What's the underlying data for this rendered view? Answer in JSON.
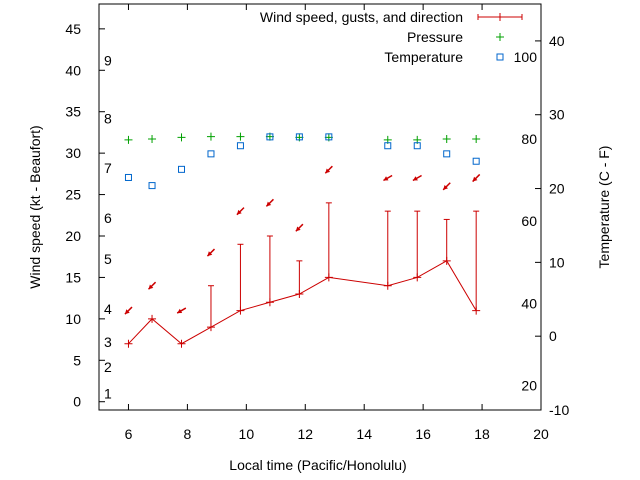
{
  "chart_data": {
    "type": "line",
    "xlabel": "Local time (Pacific/Honolulu)",
    "ylabel": "Wind speed (kt - Beaufort)",
    "y2label": "Temperature (C - F)",
    "xlim": [
      5,
      20
    ],
    "ylim": [
      -1,
      48
    ],
    "y2lim": [
      -10,
      45
    ],
    "x_ticks": [
      "6",
      "8",
      "10",
      "12",
      "14",
      "16",
      "18",
      "20"
    ],
    "y_ticks": [
      "0",
      "5",
      "10",
      "15",
      "20",
      "25",
      "30",
      "35",
      "40",
      "45"
    ],
    "y2_ticks": [
      "-10",
      "0",
      "10",
      "20",
      "30",
      "40"
    ],
    "beaufort_labels": [
      {
        "text": "1",
        "kt": 1
      },
      {
        "text": "2",
        "kt": 4.2
      },
      {
        "text": "3",
        "kt": 7.2
      },
      {
        "text": "4",
        "kt": 11.2
      },
      {
        "text": "5",
        "kt": 17.2
      },
      {
        "text": "6",
        "kt": 22.2
      },
      {
        "text": "7",
        "kt": 28.2
      },
      {
        "text": "8",
        "kt": 34.2
      },
      {
        "text": "9",
        "kt": 41.2
      }
    ],
    "fahrenheit_labels": [
      {
        "text": "20",
        "c": -6.7
      },
      {
        "text": "40",
        "c": 4.4
      },
      {
        "text": "60",
        "c": 15.6
      },
      {
        "text": "80",
        "c": 26.7
      },
      {
        "text": "100",
        "c": 37.8
      }
    ],
    "legend_position": "top-right",
    "series": [
      {
        "name": "Wind speed, gusts, and direction",
        "color": "#cc0000",
        "x": [
          6,
          6.8,
          7.8,
          8.8,
          9.8,
          10.8,
          11.8,
          12.8,
          14.8,
          15.8,
          16.8,
          17.8
        ],
        "values": [
          7,
          10,
          7,
          9,
          11,
          12,
          13,
          15,
          14,
          15,
          17,
          11
        ],
        "gusts": [
          7,
          10,
          7,
          14,
          19,
          20,
          17,
          24,
          23,
          23,
          22,
          23
        ],
        "arrow_y": [
          11,
          14,
          11,
          18,
          23,
          24,
          21,
          28,
          27,
          27,
          26,
          27
        ],
        "direction_from_deg": [
          45,
          45,
          60,
          45,
          45,
          45,
          45,
          45,
          60,
          60,
          45,
          45
        ]
      },
      {
        "name": "Pressure",
        "color": "#00a000",
        "marker": "plus",
        "x": [
          6,
          6.8,
          7.8,
          8.8,
          9.8,
          10.8,
          11.8,
          12.8,
          14.8,
          15.8,
          16.8,
          17.8
        ],
        "values": [
          31.6,
          31.7,
          31.9,
          32,
          32,
          32,
          31.9,
          31.9,
          31.6,
          31.6,
          31.7,
          31.7
        ]
      },
      {
        "name": "Temperature",
        "color": "#0066cc",
        "marker": "square",
        "axis": "y2",
        "x": [
          6,
          6.8,
          7.8,
          8.8,
          9.8,
          10.8,
          11.8,
          12.8,
          14.8,
          15.8,
          16.8,
          17.8
        ],
        "values": [
          21.5,
          20.4,
          22.6,
          24.7,
          25.8,
          27,
          27,
          27,
          25.8,
          25.8,
          24.7,
          23.7
        ]
      }
    ]
  }
}
